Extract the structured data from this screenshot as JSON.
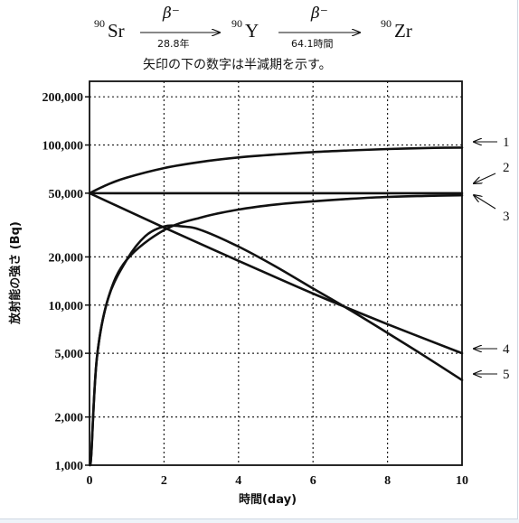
{
  "header": {
    "parent": {
      "mass": "90",
      "symbol": "Sr"
    },
    "first_arrow": {
      "label": "β⁻",
      "half_life": "28.8年"
    },
    "middle": {
      "mass": "90",
      "symbol": "Y"
    },
    "second_arrow": {
      "label": "β⁻",
      "half_life": "64.1時間"
    },
    "daughter": {
      "mass": "90",
      "symbol": "Zr"
    },
    "note": "矢印の下の数字は半減期を示す。"
  },
  "chart_data": {
    "type": "line",
    "title": "",
    "xlabel": "時間(day)",
    "ylabel": "放射能の強さ (Bq)",
    "xlim": [
      0,
      10
    ],
    "ylim": [
      1000,
      250000
    ],
    "yscale": "log",
    "grid": true,
    "x_ticks": [
      0,
      2,
      4,
      6,
      8,
      10
    ],
    "x_tick_labels": [
      "0",
      "2",
      "4",
      "6",
      "8",
      "10"
    ],
    "y_ticks": [
      1000,
      2000,
      5000,
      10000,
      20000,
      50000,
      100000,
      200000
    ],
    "y_tick_labels": [
      "1,000",
      "2,000",
      "5,000",
      "10,000",
      "20,000",
      "50,000",
      "100,000",
      "200,000"
    ],
    "series": [
      {
        "name": "1",
        "x": [
          0,
          0.5,
          1,
          2,
          3,
          4,
          5,
          6,
          7,
          8,
          9,
          10
        ],
        "values": [
          50000,
          56800,
          62600,
          71700,
          78500,
          83600,
          87300,
          90300,
          92500,
          94300,
          95700,
          96400
        ]
      },
      {
        "name": "2",
        "x": [
          0,
          2,
          4,
          6,
          8,
          10
        ],
        "values": [
          50000,
          50000,
          50000,
          50000,
          50000,
          50000
        ]
      },
      {
        "name": "3",
        "x": [
          0.05,
          0.2,
          0.5,
          1,
          2,
          3,
          4,
          5,
          6,
          7,
          8,
          9,
          10
        ],
        "values": [
          1200,
          4700,
          11000,
          19200,
          29400,
          35300,
          39500,
          42500,
          44500,
          46100,
          47400,
          48100,
          48500
        ]
      },
      {
        "name": "4",
        "x": [
          0,
          2,
          4,
          6,
          8,
          10
        ],
        "values": [
          50000,
          30500,
          18900,
          11800,
          7600,
          5000
        ]
      },
      {
        "name": "5",
        "x": [
          0.05,
          0.2,
          0.5,
          1,
          1.5,
          2,
          2.5,
          3,
          4,
          5,
          6,
          7,
          8,
          9,
          10
        ],
        "values": [
          1200,
          4700,
          11000,
          19200,
          27000,
          31000,
          31000,
          29400,
          23200,
          17400,
          12700,
          9300,
          6700,
          4800,
          3400
        ]
      }
    ],
    "curve_labels": [
      "1",
      "2",
      "3",
      "4",
      "5"
    ]
  }
}
